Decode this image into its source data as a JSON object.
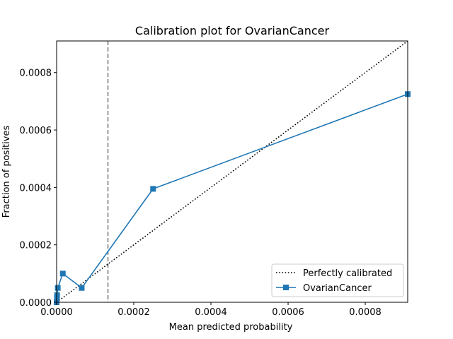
{
  "chart_data": {
    "type": "line",
    "title": "Calibration plot for OvarianCancer",
    "xlabel": "Mean predicted probability",
    "ylabel": "Fraction of positives",
    "xlim": [
      0,
      0.00091
    ],
    "ylim": [
      0,
      0.00091
    ],
    "xticks": [
      0,
      0.0002,
      0.0004,
      0.0006,
      0.0008
    ],
    "xtick_labels": [
      "0.0000",
      "0.0002",
      "0.0004",
      "0.0006",
      "0.0008"
    ],
    "yticks": [
      0,
      0.0002,
      0.0004,
      0.0006,
      0.0008
    ],
    "ytick_labels": [
      "0.0000",
      "0.0002",
      "0.0004",
      "0.0006",
      "0.0008"
    ],
    "grid": false,
    "legend_position": "bottom-right",
    "reference_line": {
      "name": "Perfectly calibrated",
      "x": [
        0,
        0.00091
      ],
      "y": [
        0,
        0.00091
      ],
      "style": "dotted",
      "color": "#000000"
    },
    "threshold_line": {
      "x": 0.000133,
      "style": "dashed",
      "color": "#808080"
    },
    "series": [
      {
        "name": "OvarianCancer",
        "color": "#1f77b4",
        "marker": "square",
        "x": [
          0.0,
          8e-07,
          1.2e-06,
          3e-06,
          1.6e-05,
          6.5e-05,
          0.00025,
          0.00091
        ],
        "y": [
          0.0,
          1.5e-05,
          2.5e-05,
          5e-05,
          0.0001,
          5e-05,
          0.000395,
          0.000725
        ]
      }
    ]
  }
}
